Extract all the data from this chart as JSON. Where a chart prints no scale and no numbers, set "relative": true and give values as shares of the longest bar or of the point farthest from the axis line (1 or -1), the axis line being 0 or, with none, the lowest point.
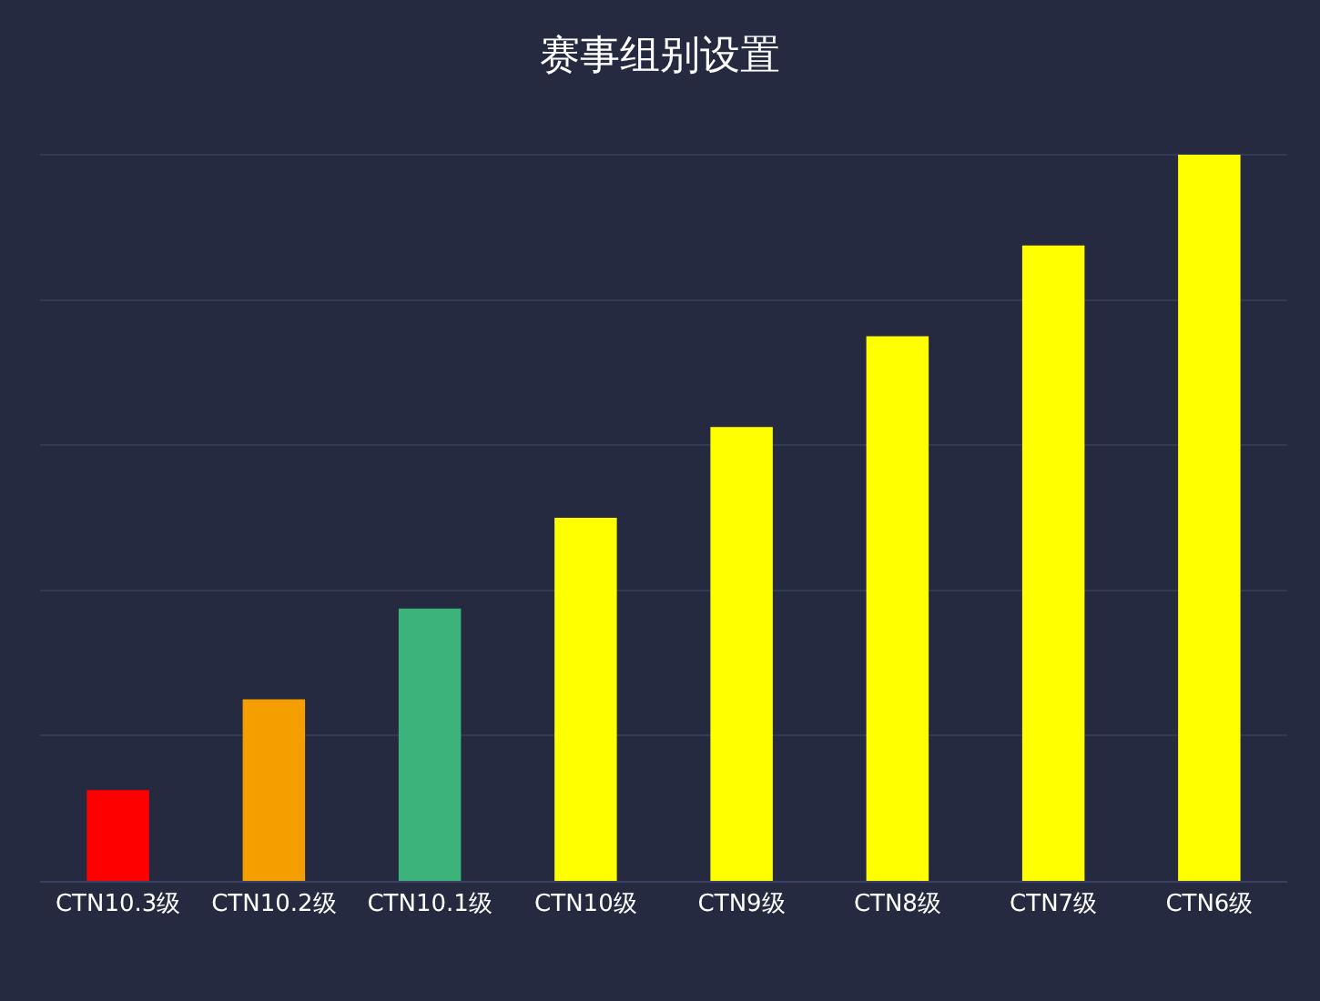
{
  "chart_data": {
    "type": "bar",
    "title": "赛事组别设置",
    "relative": true,
    "categories": [
      "CTN10.3级",
      "CTN10.2级",
      "CTN10.1级",
      "CTN10级",
      "CTN9级",
      "CTN8级",
      "CTN7级",
      "CTN6级"
    ],
    "values": [
      0.125,
      0.25,
      0.375,
      0.5,
      0.625,
      0.75,
      0.875,
      1
    ],
    "colors": [
      "#ff0000",
      "#f59e00",
      "#3cb37a",
      "#ffff00",
      "#ffff00",
      "#ffff00",
      "#ffff00",
      "#ffff00"
    ],
    "grid": "y"
  }
}
